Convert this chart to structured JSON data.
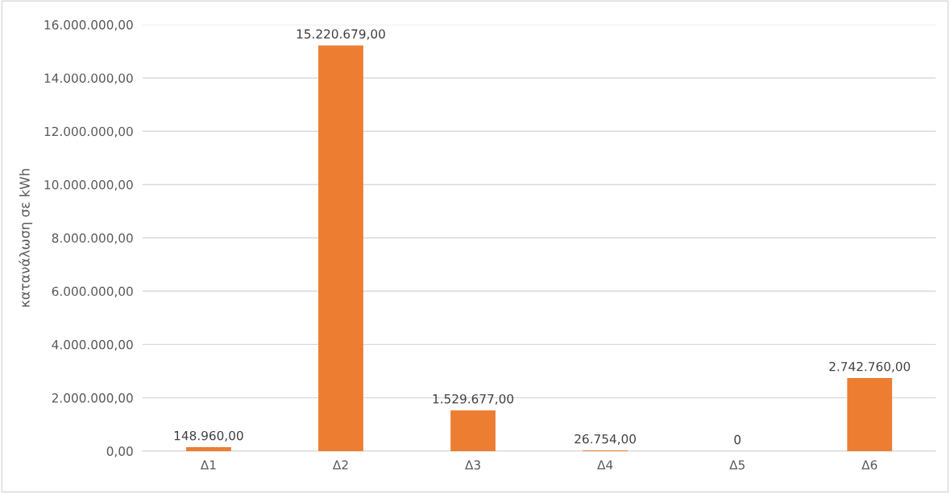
{
  "chart_data": {
    "type": "bar",
    "ylabel": "κατανάλωση σε kWh",
    "categories": [
      "Δ1",
      "Δ2",
      "Δ3",
      "Δ4",
      "Δ5",
      "Δ6"
    ],
    "values": [
      148960,
      15220679,
      1529677,
      26754,
      0,
      2742760
    ],
    "value_labels": [
      "148.960,00",
      "15.220.679,00",
      "1.529.677,00",
      "26.754,00",
      "0",
      "2.742.760,00"
    ],
    "color": "#ed7d31",
    "ylim": [
      0,
      16000000
    ],
    "yticks": [
      {
        "value": 0,
        "label": "0,00"
      },
      {
        "value": 2000000,
        "label": "2.000.000,00"
      },
      {
        "value": 4000000,
        "label": "4.000.000,00"
      },
      {
        "value": 6000000,
        "label": "6.000.000,00"
      },
      {
        "value": 8000000,
        "label": "8.000.000,00"
      },
      {
        "value": 10000000,
        "label": "10.000.000,00"
      },
      {
        "value": 12000000,
        "label": "12.000.000,00"
      },
      {
        "value": 14000000,
        "label": "14.000.000,00"
      },
      {
        "value": 16000000,
        "label": "16.000.000,00"
      }
    ],
    "grid": "y"
  }
}
